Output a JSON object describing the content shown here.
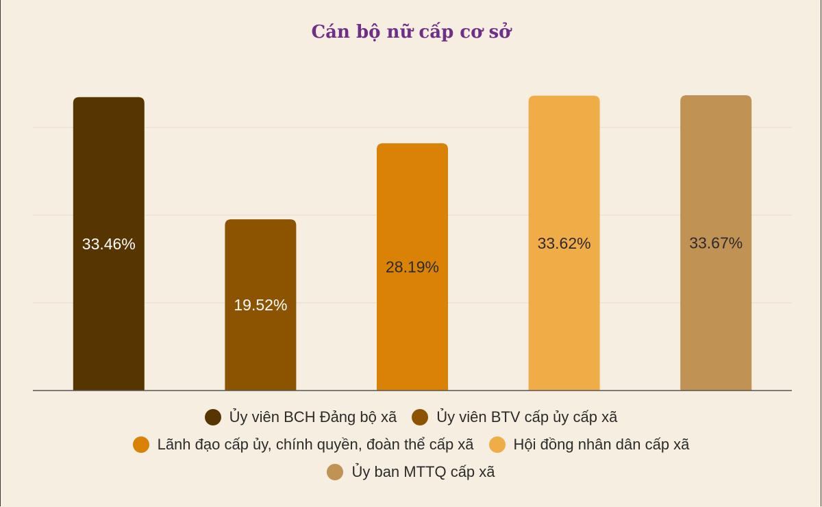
{
  "title": "Cán bộ nữ cấp cơ sở",
  "chart_data": {
    "type": "bar",
    "title": "Cán bộ nữ cấp cơ sở",
    "categories": [
      "Ủy viên BCH Đảng bộ xã",
      "Ủy viên BTV cấp ủy cấp xã",
      "Lãnh đạo cấp ủy, chính quyền, đoàn thể cấp xã",
      "Hội đồng nhân dân cấp xã",
      "Ủy ban MTTQ cấp xã"
    ],
    "values": [
      33.46,
      19.52,
      28.19,
      33.62,
      33.67
    ],
    "value_labels": [
      "33.46%",
      "19.52%",
      "28.19%",
      "33.62%",
      "33.67%"
    ],
    "colors": [
      "#573500",
      "#8c5400",
      "#d98205",
      "#f0ac46",
      "#c09253"
    ],
    "label_colors": [
      "#ffffff",
      "#ffffff",
      "#2b2b2b",
      "#2b2b2b",
      "#2b2b2b"
    ],
    "ylim": [
      0,
      33.67
    ],
    "grid": true,
    "legend_position": "bottom"
  }
}
